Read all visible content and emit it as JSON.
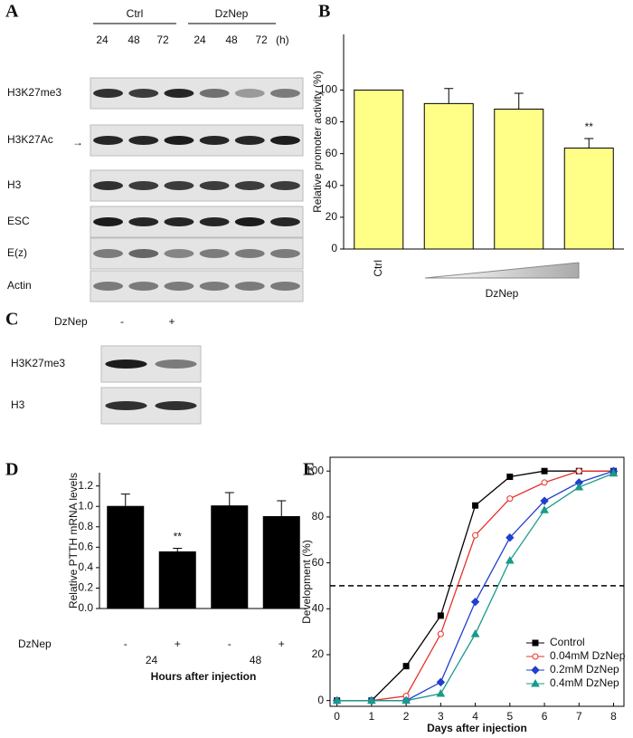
{
  "panels": [
    "A",
    "B",
    "C",
    "D",
    "E"
  ],
  "blots": {
    "A": {
      "groups": [
        "Ctrl",
        "DzNep"
      ],
      "lanes": [
        "24",
        "48",
        "72",
        "24",
        "48",
        "72"
      ],
      "unit": "(h)",
      "rows": [
        "H3K27me3",
        "H3K27Ac",
        "H3",
        "ESC",
        "E(z)",
        "Actin"
      ]
    },
    "C": {
      "treatment": "DzNep",
      "lanes": [
        "-",
        "+"
      ],
      "rows": [
        "H3K27me3",
        "H3"
      ]
    }
  },
  "chart_data": [
    {
      "type": "bar",
      "categories": [
        "Ctrl",
        null,
        null,
        null
      ],
      "group_label": "DzNep",
      "values": [
        100,
        91.5,
        88,
        63.5
      ],
      "errors": [
        0,
        9.5,
        10,
        6
      ],
      "color": "#ffff88",
      "y_label": "Relative promoter activity (%)",
      "annotations": [
        "**"
      ],
      "ylim": [
        0,
        135
      ],
      "yticks": [
        0,
        20,
        40,
        60,
        80,
        100
      ]
    },
    {
      "type": "bar",
      "categories": [
        "-",
        "+",
        "-",
        "+"
      ],
      "groups": [
        "24",
        "48"
      ],
      "row_label": "DzNep",
      "values": [
        1.0,
        0.555,
        1.005,
        0.9
      ],
      "errors": [
        0.12,
        0.035,
        0.13,
        0.155
      ],
      "color": "#000000",
      "y_label": "Relative PTTH mRNA levels",
      "x_label": "Hours after injection",
      "annotations": [
        "**"
      ],
      "ylim": [
        0,
        1.33
      ],
      "yticks": [
        {
          "value": 0,
          "label": "0.0"
        },
        0.2,
        0.4,
        0.6,
        0.8,
        {
          "value": 1,
          "label": "1.0"
        },
        1.2
      ]
    },
    {
      "type": "line",
      "x": [
        0,
        1,
        2,
        3,
        4,
        5,
        6,
        7,
        8
      ],
      "series": [
        {
          "name": "Control",
          "color": "#000000",
          "marker": "square",
          "values": [
            0,
            0,
            15,
            37,
            85,
            97.5,
            100,
            100,
            100
          ]
        },
        {
          "name": "0.04mM DzNep",
          "color": "#e8302a",
          "marker": "circle-open",
          "values": [
            0,
            0,
            2,
            29,
            72,
            88,
            95,
            100,
            100
          ]
        },
        {
          "name": "0.2mM DzNep",
          "color": "#1f3fcf",
          "marker": "diamond",
          "values": [
            0,
            0,
            0,
            8,
            43,
            71,
            87,
            95,
            100
          ]
        },
        {
          "name": "0.4mM DzNep",
          "color": "#1a9a8a",
          "marker": "triangle",
          "values": [
            0,
            0,
            0,
            3,
            29,
            61,
            83,
            93,
            99
          ]
        }
      ],
      "y_label": "Development (%)",
      "x_label": "Days after injection",
      "reference_line": 50,
      "xlim": [
        -0.2,
        8.3
      ],
      "xticks": [
        0,
        1,
        2,
        3,
        4,
        5,
        6,
        7,
        8
      ],
      "ylim": [
        -2.5,
        106
      ],
      "yticks": [
        0,
        20,
        40,
        60,
        80,
        100
      ],
      "legend": "lower right"
    }
  ]
}
